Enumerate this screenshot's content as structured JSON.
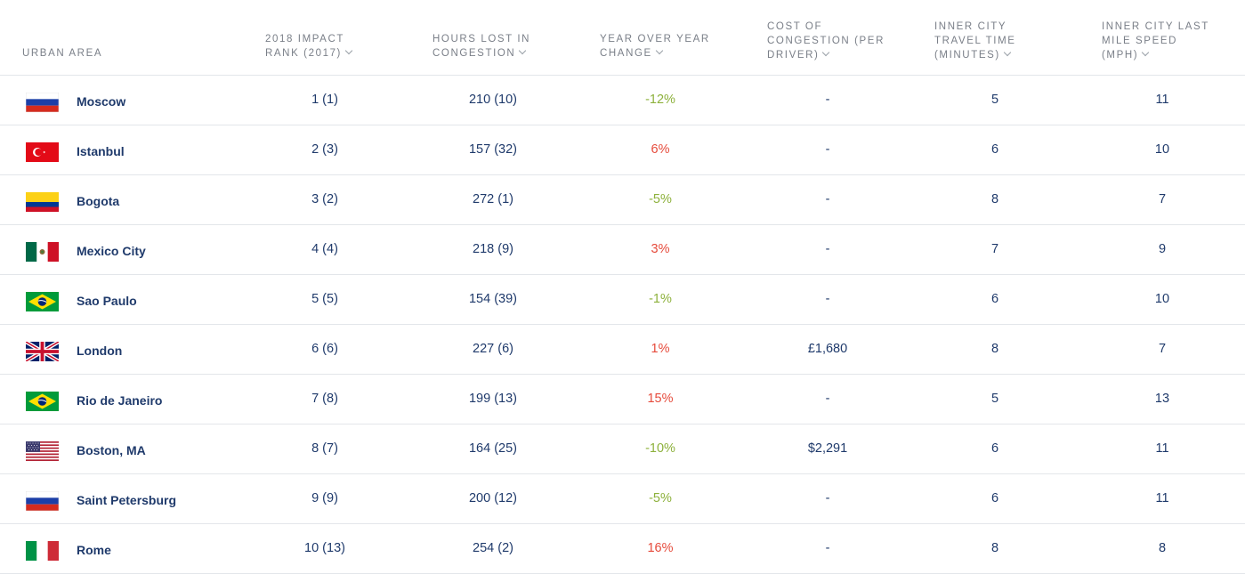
{
  "headers": {
    "area": "URBAN AREA",
    "rank": "2018 IMPACT\nRANK (2017)",
    "hours": "HOURS LOST IN\nCONGESTION",
    "yoy": "YEAR OVER YEAR\nCHANGE",
    "cost": "COST OF\nCONGESTION (PER\nDRIVER)",
    "travel": "INNER CITY\nTRAVEL TIME\n(MINUTES)",
    "speed": "INNER CITY LAST\nMILE SPEED\n(MPH)"
  },
  "rows": [
    {
      "city": "Moscow",
      "flag": "russia",
      "rank": "1 (1)",
      "hours": "210 (10)",
      "yoy": "-12%",
      "yoy_dir": "neg",
      "cost": "-",
      "travel": "5",
      "speed": "11"
    },
    {
      "city": "Istanbul",
      "flag": "turkey",
      "rank": "2 (3)",
      "hours": "157 (32)",
      "yoy": "6%",
      "yoy_dir": "pos",
      "cost": "-",
      "travel": "6",
      "speed": "10"
    },
    {
      "city": "Bogota",
      "flag": "colombia",
      "rank": "3 (2)",
      "hours": "272 (1)",
      "yoy": "-5%",
      "yoy_dir": "neg",
      "cost": "-",
      "travel": "8",
      "speed": "7"
    },
    {
      "city": "Mexico City",
      "flag": "mexico",
      "rank": "4 (4)",
      "hours": "218 (9)",
      "yoy": "3%",
      "yoy_dir": "pos",
      "cost": "-",
      "travel": "7",
      "speed": "9"
    },
    {
      "city": "Sao Paulo",
      "flag": "brazil",
      "rank": "5 (5)",
      "hours": "154 (39)",
      "yoy": "-1%",
      "yoy_dir": "neg",
      "cost": "-",
      "travel": "6",
      "speed": "10"
    },
    {
      "city": "London",
      "flag": "uk",
      "rank": "6 (6)",
      "hours": "227 (6)",
      "yoy": "1%",
      "yoy_dir": "pos",
      "cost": "£1,680",
      "travel": "8",
      "speed": "7"
    },
    {
      "city": "Rio de Janeiro",
      "flag": "brazil",
      "rank": "7 (8)",
      "hours": "199 (13)",
      "yoy": "15%",
      "yoy_dir": "pos",
      "cost": "-",
      "travel": "5",
      "speed": "13"
    },
    {
      "city": "Boston, MA",
      "flag": "usa",
      "rank": "8 (7)",
      "hours": "164 (25)",
      "yoy": "-10%",
      "yoy_dir": "neg",
      "cost": "$2,291",
      "travel": "6",
      "speed": "11"
    },
    {
      "city": "Saint Petersburg",
      "flag": "russia",
      "rank": "9 (9)",
      "hours": "200 (12)",
      "yoy": "-5%",
      "yoy_dir": "neg",
      "cost": "-",
      "travel": "6",
      "speed": "11"
    },
    {
      "city": "Rome",
      "flag": "italy",
      "rank": "10 (13)",
      "hours": "254 (2)",
      "yoy": "16%",
      "yoy_dir": "pos",
      "cost": "-",
      "travel": "8",
      "speed": "8"
    }
  ],
  "colors": {
    "negative": "#8db13c",
    "positive": "#e64b3c",
    "text": "#1f3a6b"
  }
}
